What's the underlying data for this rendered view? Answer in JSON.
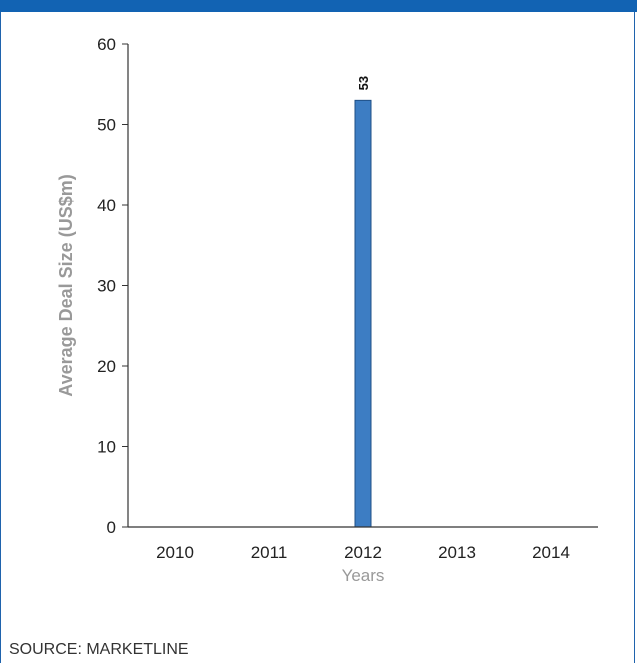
{
  "header_bar_color": "#1263b3",
  "source_text": "SOURCE: MARKETLINE",
  "chart_data": {
    "type": "bar",
    "categories": [
      "2010",
      "2011",
      "2012",
      "2013",
      "2014"
    ],
    "values": [
      0,
      0,
      53,
      0,
      0
    ],
    "data_labels": [
      "",
      "",
      "53",
      "",
      ""
    ],
    "xlabel": "Years",
    "ylabel": "Average Deal Size (US$m)",
    "ylim": [
      0,
      60
    ],
    "yticks": [
      0,
      10,
      20,
      30,
      40,
      50,
      60
    ],
    "grid": false,
    "legend": "none",
    "bar_color": "#3d7dc3",
    "bar_edge_color": "#1f4f86"
  }
}
